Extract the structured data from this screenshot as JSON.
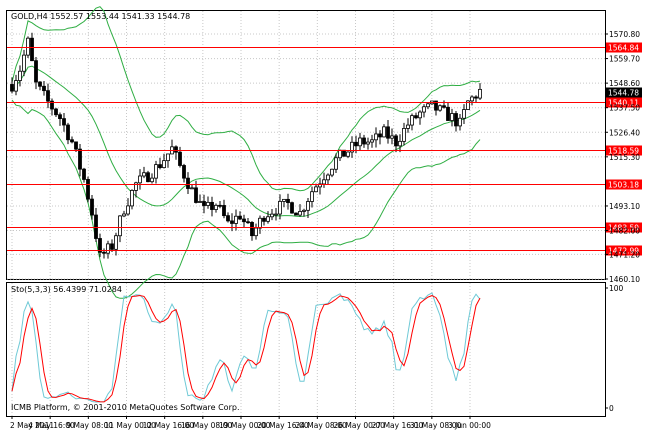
{
  "main_header": "GOLD,H4  1552.57 1553.44 1541.33 1544.78",
  "stoch_header": "Sto(5,3,3) 56.4399 71.0284",
  "copyright": "ICMB Platform, © 2001-2010 MetaQuotes Software Corp.",
  "colors": {
    "bollinger": "#2fae43",
    "level_line": "#ff0000",
    "stoch_main": "#6ec9d6",
    "stoch_signal": "#ff0000",
    "price_tag_bg": "#ff0000",
    "current_tag_bg": "#000000",
    "grid": "#c8c8c8"
  },
  "price_axis": {
    "ticks": [
      {
        "label": "1570.80",
        "value": 1570.8
      },
      {
        "label": "1559.70",
        "value": 1559.7
      },
      {
        "label": "1548.60",
        "value": 1548.6
      },
      {
        "label": "1537.50",
        "value": 1537.5
      },
      {
        "label": "1526.40",
        "value": 1526.4
      },
      {
        "label": "1515.30",
        "value": 1515.3
      },
      {
        "label": "1493.10",
        "value": 1493.1
      },
      {
        "label": "1482.00",
        "value": 1482.0
      },
      {
        "label": "1471.20",
        "value": 1471.2
      },
      {
        "label": "1460.10",
        "value": 1460.1
      }
    ],
    "levels": [
      {
        "label": "1564.84",
        "value": 1564.84
      },
      {
        "label": "1540.11",
        "value": 1540.11
      },
      {
        "label": "1518.59",
        "value": 1518.59
      },
      {
        "label": "1503.18",
        "value": 1503.18
      },
      {
        "label": "1483.59",
        "value": 1483.59
      },
      {
        "label": "1472.99",
        "value": 1472.99
      }
    ],
    "current": {
      "label": "1544.78",
      "value": 1544.78
    }
  },
  "stoch_axis": {
    "ticks": [
      {
        "label": "100",
        "value": 100
      },
      {
        "label": "0",
        "value": 0
      }
    ]
  },
  "time_axis": [
    "2 May 2011",
    "4 May 16:00",
    "9 May 08:00",
    "11 May 00:00",
    "12 May 16:00",
    "16 May 08:00",
    "19 May 00:00",
    "20 May 16:00",
    "24 May 08:00",
    "26 May 00:00",
    "27 May 16:00",
    "31 May 08:00",
    "3 Jun 00:00"
  ]
}
